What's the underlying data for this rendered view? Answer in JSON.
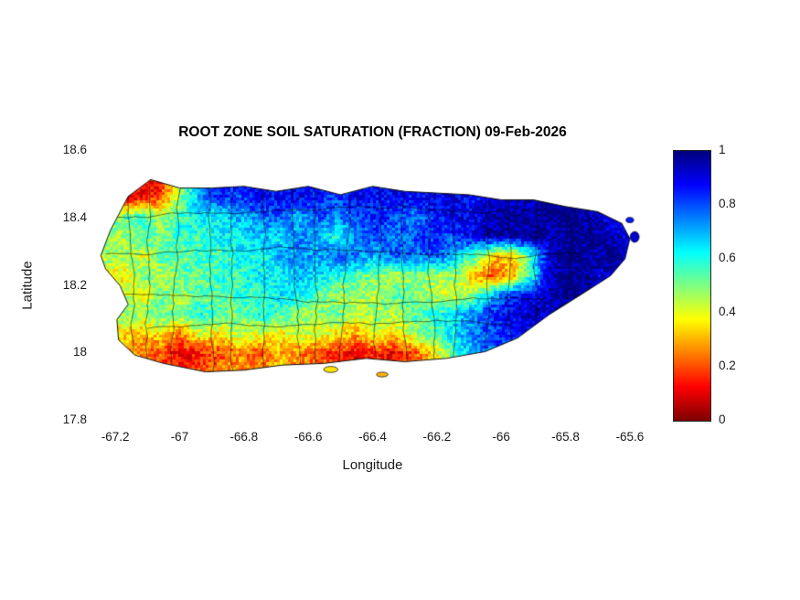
{
  "figure": {
    "title": "ROOT ZONE SOIL SATURATION (FRACTION) 09-Feb-2026",
    "xlabel": "Longitude",
    "ylabel": "Latitude",
    "background": "#ffffff"
  },
  "chart_data": {
    "type": "heatmap",
    "title": "ROOT ZONE SOIL SATURATION (FRACTION) 09-Feb-2026",
    "xlabel": "Longitude",
    "ylabel": "Latitude",
    "xlim": [
      -67.26,
      -65.54
    ],
    "ylim": [
      17.8,
      18.6
    ],
    "xticks": [
      -67.2,
      -67.0,
      -66.8,
      -66.6,
      -66.4,
      -66.2,
      -66.0,
      -65.8,
      -65.6
    ],
    "xtick_labels": [
      "-67.2",
      "-67",
      "-66.8",
      "-66.6",
      "-66.4",
      "-66.2",
      "-66",
      "-65.8",
      "-65.6"
    ],
    "yticks": [
      18.6,
      18.4,
      18.2,
      18.0,
      17.8
    ],
    "ytick_labels": [
      "18.6",
      "18.4",
      "18.2",
      "18",
      "17.8"
    ],
    "grid_lines": false,
    "region": "Puerto Rico with municipality boundaries",
    "boundaries_shown": true,
    "colormap": "jet reversed (1 = dark blue, 0 = dark red)",
    "colormap_anchor_colors": {
      "value_1": "#00008f",
      "value_0.8": "#0060ff",
      "value_0.6": "#00e0e0",
      "value_0.4": "#ffe000",
      "value_0.2": "#ff4000",
      "value_0": "#8f0000"
    },
    "colorbar": {
      "position": "right",
      "range": [
        0,
        1
      ],
      "ticks": [
        0,
        0.2,
        0.4,
        0.6,
        0.8,
        1
      ],
      "labels": [
        "0",
        "0.2",
        "0.4",
        "0.6",
        "0.8",
        "1"
      ]
    },
    "grid": {
      "description": "Estimated root-zone soil saturation fraction on a coarse lon/lat grid read from map colors",
      "lon_start": -67.24,
      "lon_end": -65.6,
      "lat_start": 18.52,
      "lat_end": 17.94,
      "ncols": 28,
      "nrows": 11,
      "values": [
        [
          0.5,
          0.3,
          0.15,
          0.1,
          0.45,
          0.8,
          0.9,
          0.85,
          0.9,
          0.9,
          0.85,
          0.9,
          0.9,
          0.85,
          0.9,
          0.9,
          0.85,
          0.9,
          0.9,
          0.9,
          0.95,
          0.95,
          0.95,
          0.95,
          1.0,
          0.95,
          0.95,
          0.95
        ],
        [
          0.4,
          0.15,
          0.1,
          0.2,
          0.5,
          0.7,
          0.85,
          0.8,
          0.9,
          0.85,
          0.9,
          0.85,
          0.8,
          0.9,
          0.85,
          0.9,
          0.85,
          0.9,
          0.9,
          0.85,
          0.95,
          0.9,
          0.95,
          1.0,
          0.95,
          1.0,
          0.95,
          0.9
        ],
        [
          0.55,
          0.5,
          0.6,
          0.45,
          0.55,
          0.65,
          0.6,
          0.7,
          0.75,
          0.8,
          0.7,
          0.8,
          0.75,
          0.8,
          0.85,
          0.8,
          0.75,
          0.85,
          0.9,
          0.9,
          0.95,
          1.0,
          0.95,
          1.0,
          1.0,
          0.95,
          0.9,
          0.95
        ],
        [
          0.5,
          0.45,
          0.55,
          0.5,
          0.6,
          0.55,
          0.65,
          0.6,
          0.7,
          0.65,
          0.75,
          0.7,
          0.6,
          0.75,
          0.8,
          0.75,
          0.8,
          0.85,
          0.8,
          0.9,
          0.95,
          0.95,
          1.0,
          0.95,
          1.0,
          1.0,
          0.95,
          0.9
        ],
        [
          0.45,
          0.5,
          0.4,
          0.55,
          0.5,
          0.6,
          0.55,
          0.65,
          0.6,
          0.7,
          0.75,
          0.7,
          0.8,
          0.75,
          0.7,
          0.8,
          0.75,
          0.8,
          0.7,
          0.55,
          0.35,
          0.3,
          0.6,
          0.95,
          1.0,
          0.95,
          1.0,
          0.95
        ],
        [
          0.4,
          0.35,
          0.5,
          0.45,
          0.55,
          0.5,
          0.6,
          0.55,
          0.65,
          0.6,
          0.7,
          0.65,
          0.6,
          0.55,
          0.5,
          0.45,
          0.5,
          0.45,
          0.5,
          0.3,
          0.2,
          0.3,
          0.6,
          0.95,
          1.0,
          0.95,
          0.9,
          0.95
        ],
        [
          0.25,
          0.45,
          0.4,
          0.5,
          0.45,
          0.55,
          0.5,
          0.6,
          0.55,
          0.65,
          0.6,
          0.55,
          0.45,
          0.5,
          0.45,
          0.55,
          0.5,
          0.45,
          0.4,
          0.5,
          0.7,
          0.85,
          0.9,
          0.95,
          1.0,
          0.95,
          0.9,
          0.95
        ],
        [
          0.3,
          0.5,
          0.45,
          0.55,
          0.5,
          0.6,
          0.55,
          0.5,
          0.6,
          0.55,
          0.5,
          0.45,
          0.55,
          0.4,
          0.5,
          0.45,
          0.55,
          0.6,
          0.65,
          0.75,
          0.85,
          0.9,
          0.95,
          0.9,
          0.95,
          0.9,
          0.95,
          0.9
        ],
        [
          0.3,
          0.35,
          0.3,
          0.35,
          0.25,
          0.4,
          0.35,
          0.45,
          0.4,
          0.35,
          0.45,
          0.4,
          0.35,
          0.3,
          0.4,
          0.35,
          0.45,
          0.55,
          0.65,
          0.75,
          0.8,
          0.85,
          0.9,
          0.85,
          0.9,
          0.85,
          0.9,
          0.9
        ],
        [
          0.45,
          0.3,
          0.25,
          0.2,
          0.1,
          0.15,
          0.2,
          0.25,
          0.2,
          0.3,
          0.25,
          0.2,
          0.15,
          0.1,
          0.15,
          0.1,
          0.2,
          0.35,
          0.55,
          0.7,
          0.8,
          0.85,
          0.9,
          0.85,
          0.9,
          0.9,
          0.85,
          0.9
        ],
        [
          0.5,
          0.35,
          0.3,
          0.25,
          0.15,
          0.2,
          0.25,
          0.3,
          0.25,
          0.35,
          0.3,
          0.25,
          0.2,
          0.15,
          0.2,
          0.15,
          0.25,
          0.4,
          0.6,
          0.7,
          0.8,
          0.85,
          0.9,
          0.85,
          0.9,
          0.85,
          0.9,
          0.9
        ]
      ]
    },
    "coastline": [
      [
        -67.245,
        18.29
      ],
      [
        -67.215,
        18.365
      ],
      [
        -67.16,
        18.465
      ],
      [
        -67.09,
        18.515
      ],
      [
        -67.0,
        18.49
      ],
      [
        -66.9,
        18.49
      ],
      [
        -66.8,
        18.495
      ],
      [
        -66.7,
        18.48
      ],
      [
        -66.6,
        18.495
      ],
      [
        -66.5,
        18.47
      ],
      [
        -66.4,
        18.495
      ],
      [
        -66.3,
        18.48
      ],
      [
        -66.2,
        18.475
      ],
      [
        -66.1,
        18.47
      ],
      [
        -66.0,
        18.455
      ],
      [
        -65.9,
        18.455
      ],
      [
        -65.8,
        18.435
      ],
      [
        -65.7,
        18.42
      ],
      [
        -65.625,
        18.385
      ],
      [
        -65.6,
        18.34
      ],
      [
        -65.615,
        18.28
      ],
      [
        -65.66,
        18.23
      ],
      [
        -65.75,
        18.175
      ],
      [
        -65.85,
        18.115
      ],
      [
        -65.95,
        18.045
      ],
      [
        -66.05,
        18.005
      ],
      [
        -66.17,
        17.985
      ],
      [
        -66.3,
        17.975
      ],
      [
        -66.42,
        17.985
      ],
      [
        -66.55,
        17.97
      ],
      [
        -66.68,
        17.965
      ],
      [
        -66.8,
        17.95
      ],
      [
        -66.92,
        17.945
      ],
      [
        -67.05,
        17.97
      ],
      [
        -67.14,
        17.995
      ],
      [
        -67.19,
        18.04
      ],
      [
        -67.195,
        18.1
      ],
      [
        -67.16,
        18.145
      ],
      [
        -67.185,
        18.2
      ],
      [
        -67.23,
        18.25
      ]
    ],
    "islets": [
      {
        "lon": -66.53,
        "lat": 17.952,
        "rx": 0.022,
        "ry": 0.009,
        "value": 0.35
      },
      {
        "lon": -66.37,
        "lat": 17.937,
        "rx": 0.018,
        "ry": 0.007,
        "value": 0.3
      },
      {
        "lon": -65.585,
        "lat": 18.345,
        "rx": 0.014,
        "ry": 0.016,
        "value": 0.92
      },
      {
        "lon": -65.6,
        "lat": 18.395,
        "rx": 0.012,
        "ry": 0.008,
        "value": 0.85
      }
    ]
  }
}
